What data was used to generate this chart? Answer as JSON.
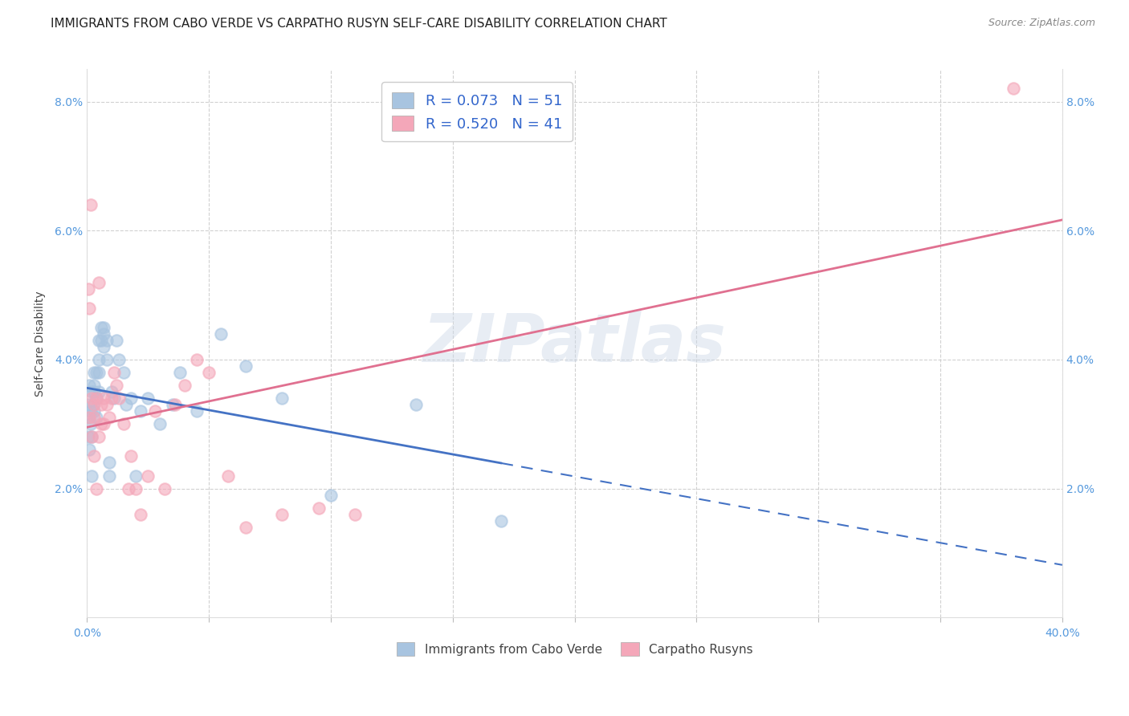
{
  "title": "IMMIGRANTS FROM CABO VERDE VS CARPATHO RUSYN SELF-CARE DISABILITY CORRELATION CHART",
  "source": "Source: ZipAtlas.com",
  "ylabel": "Self-Care Disability",
  "xlim": [
    0.0,
    0.4
  ],
  "ylim": [
    0.0,
    0.085
  ],
  "xticks": [
    0.0,
    0.05,
    0.1,
    0.15,
    0.2,
    0.25,
    0.3,
    0.35,
    0.4
  ],
  "xtick_labels": [
    "0.0%",
    "",
    "",
    "",
    "",
    "",
    "",
    "",
    "40.0%"
  ],
  "yticks_left": [
    0.02,
    0.04,
    0.06,
    0.08
  ],
  "ytick_labels_left": [
    "2.0%",
    "4.0%",
    "6.0%",
    "8.0%"
  ],
  "yticks_right": [
    0.02,
    0.04,
    0.06,
    0.08
  ],
  "ytick_labels_right": [
    "2.0%",
    "4.0%",
    "6.0%",
    "8.0%"
  ],
  "cabo_verde_color": "#a8c4e0",
  "carpatho_color": "#f4a7b9",
  "cabo_verde_line_color": "#4472c4",
  "carpatho_line_color": "#e07090",
  "cabo_verde_R": "0.073",
  "cabo_verde_N": "51",
  "carpatho_R": "0.520",
  "carpatho_N": "41",
  "cabo_verde_x": [
    0.0005,
    0.0005,
    0.001,
    0.001,
    0.001,
    0.0015,
    0.0015,
    0.002,
    0.002,
    0.002,
    0.0025,
    0.003,
    0.003,
    0.003,
    0.003,
    0.004,
    0.004,
    0.004,
    0.005,
    0.005,
    0.005,
    0.005,
    0.006,
    0.006,
    0.007,
    0.007,
    0.007,
    0.008,
    0.008,
    0.009,
    0.009,
    0.01,
    0.011,
    0.012,
    0.013,
    0.015,
    0.016,
    0.018,
    0.02,
    0.022,
    0.025,
    0.03,
    0.035,
    0.038,
    0.045,
    0.055,
    0.065,
    0.08,
    0.1,
    0.135,
    0.17
  ],
  "cabo_verde_y": [
    0.033,
    0.028,
    0.036,
    0.031,
    0.026,
    0.032,
    0.03,
    0.028,
    0.022,
    0.035,
    0.033,
    0.038,
    0.036,
    0.032,
    0.035,
    0.031,
    0.038,
    0.034,
    0.043,
    0.04,
    0.038,
    0.035,
    0.045,
    0.043,
    0.045,
    0.042,
    0.044,
    0.04,
    0.043,
    0.022,
    0.024,
    0.035,
    0.034,
    0.043,
    0.04,
    0.038,
    0.033,
    0.034,
    0.022,
    0.032,
    0.034,
    0.03,
    0.033,
    0.038,
    0.032,
    0.044,
    0.039,
    0.034,
    0.019,
    0.033,
    0.015
  ],
  "carpatho_x": [
    0.0005,
    0.001,
    0.001,
    0.0015,
    0.002,
    0.002,
    0.003,
    0.003,
    0.003,
    0.004,
    0.004,
    0.005,
    0.005,
    0.006,
    0.006,
    0.007,
    0.007,
    0.008,
    0.009,
    0.01,
    0.011,
    0.012,
    0.013,
    0.015,
    0.017,
    0.018,
    0.02,
    0.022,
    0.025,
    0.028,
    0.032,
    0.036,
    0.04,
    0.045,
    0.05,
    0.058,
    0.065,
    0.08,
    0.095,
    0.11,
    0.38
  ],
  "carpatho_y": [
    0.051,
    0.048,
    0.031,
    0.064,
    0.034,
    0.028,
    0.033,
    0.031,
    0.025,
    0.034,
    0.02,
    0.052,
    0.028,
    0.033,
    0.03,
    0.034,
    0.03,
    0.033,
    0.031,
    0.034,
    0.038,
    0.036,
    0.034,
    0.03,
    0.02,
    0.025,
    0.02,
    0.016,
    0.022,
    0.032,
    0.02,
    0.033,
    0.036,
    0.04,
    0.038,
    0.022,
    0.014,
    0.016,
    0.017,
    0.016,
    0.082
  ],
  "watermark": "ZIPatlas",
  "title_fontsize": 11,
  "axis_fontsize": 9
}
